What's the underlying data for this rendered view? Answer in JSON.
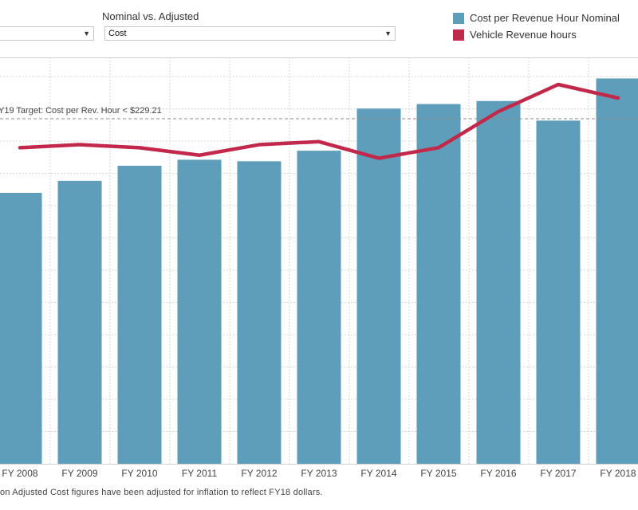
{
  "filters": {
    "left_value": "",
    "nominal_label": "Nominal vs. Adjusted",
    "nominal_value": "Cost"
  },
  "legend": [
    {
      "label": "Cost per Revenue Hour Nominal",
      "color": "#5f9eba"
    },
    {
      "label": "Vehicle Revenue hours",
      "color": "#c1284a"
    }
  ],
  "target_label": "Y19 Target: Cost per Rev. Hour < $229.21",
  "footnote": "on Adjusted Cost figures have been adjusted for inflation to reflect FY18 dollars.",
  "chart_data": {
    "type": "bar",
    "categories": [
      "FY 2008",
      "FY 2009",
      "FY 2010",
      "FY 2011",
      "FY 2012",
      "FY 2013",
      "FY 2014",
      "FY 2015",
      "FY 2016",
      "FY 2017",
      "FY 2018"
    ],
    "ylim": [
      0,
      270
    ],
    "series": [
      {
        "name": "Cost per Revenue Hour Nominal",
        "type": "bar",
        "color": "#5f9eba",
        "values": [
          180,
          188,
          198,
          202,
          201,
          208,
          236,
          239,
          241,
          228,
          256
        ]
      },
      {
        "name": "Vehicle Revenue hours",
        "type": "line",
        "color": "#c1284a",
        "values": [
          210,
          212,
          210,
          205,
          212,
          214,
          203,
          210,
          234,
          252,
          243
        ]
      }
    ],
    "target_line": 229.21,
    "grid": true
  }
}
